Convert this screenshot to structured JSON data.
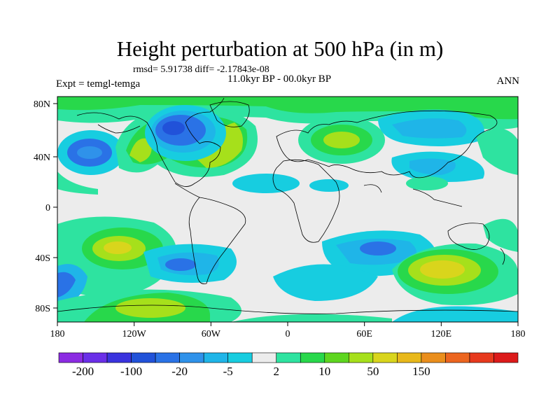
{
  "title": "Height perturbation at 500 hPa (in m)",
  "stats": "rmsd= 5.91738 diff= -2.17843e-08",
  "period": "11.0kyr BP - 00.0kyr BP",
  "experiment": "Expt = temgl-temga",
  "season": "ANN",
  "axes": {
    "lon_labels": [
      "180",
      "120W",
      "60W",
      "0",
      "60E",
      "120E",
      "180"
    ],
    "lat_labels": [
      "80N",
      "40N",
      "0",
      "40S",
      "80S"
    ]
  },
  "colorbar": {
    "colors": [
      "#8b2be2",
      "#6a2fe8",
      "#3a33de",
      "#2152d9",
      "#2a72e6",
      "#2f92ea",
      "#1fb5e8",
      "#17cde0",
      "#ececec",
      "#2ee3a0",
      "#28d84b",
      "#5ed61f",
      "#a6e01b",
      "#d9d51c",
      "#e8b81a",
      "#ea8e1c",
      "#ec651f",
      "#e7391d",
      "#dc1a1a"
    ],
    "labels": [
      "-200",
      "-100",
      "-20",
      "-5",
      "2",
      "10",
      "50",
      "150"
    ]
  }
}
